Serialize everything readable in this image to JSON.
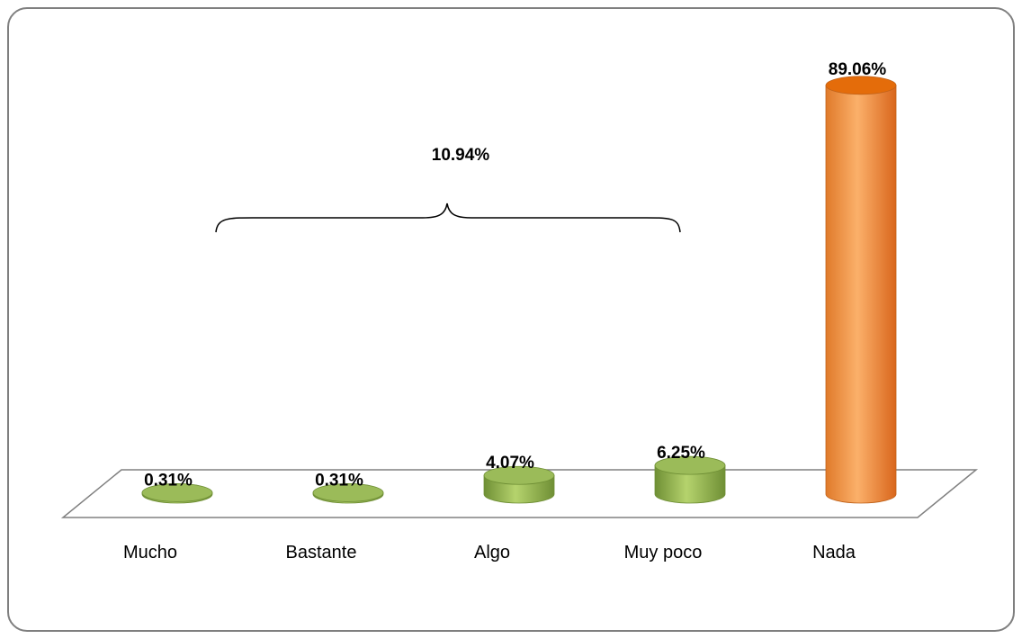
{
  "chart_data": {
    "type": "bar",
    "categories": [
      "Mucho",
      "Bastante",
      "Algo",
      "Muy poco",
      "Nada"
    ],
    "values": [
      0.31,
      0.31,
      4.07,
      6.25,
      89.06
    ],
    "value_labels": [
      "0.31%",
      "0.31%",
      "4.07%",
      "6.25%",
      "89.06%"
    ],
    "ylim": [
      0,
      100
    ],
    "grid": false,
    "legend": "none",
    "colors": {
      "green": "#8db04a",
      "green_top": "#9bbb59",
      "orange": "#f79646",
      "orange_top": "#e46c0a",
      "floor": "#808080",
      "frame": "#7f7f7f"
    },
    "group_annotation": {
      "label": "10.94%",
      "spans": [
        "Mucho",
        "Muy poco"
      ]
    }
  }
}
